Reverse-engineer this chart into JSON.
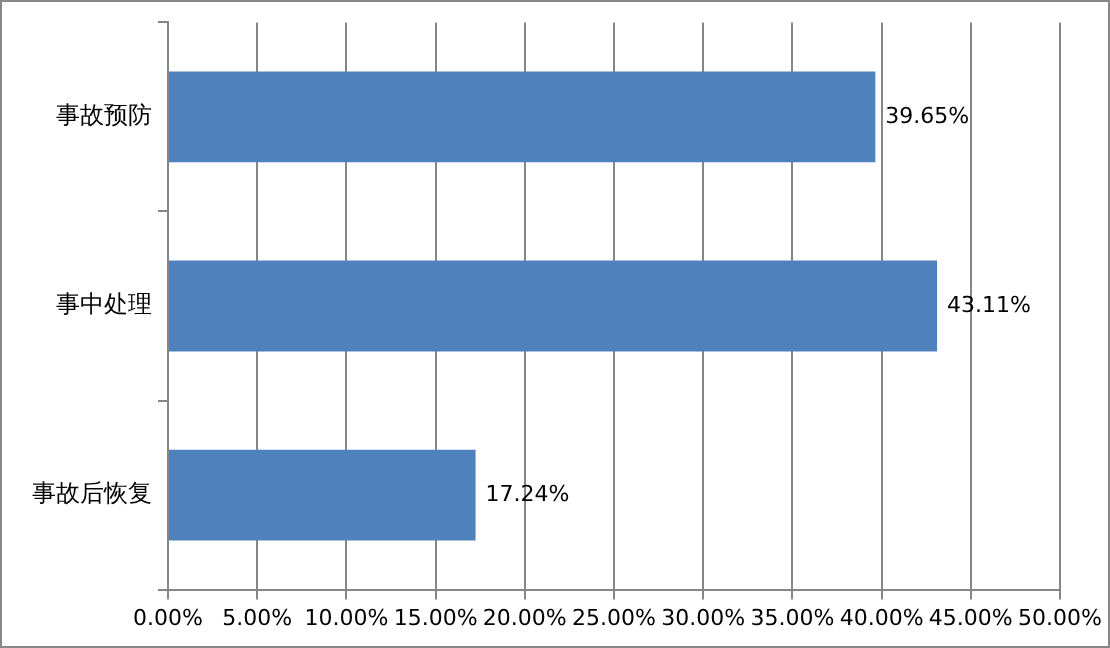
{
  "chart_data": {
    "type": "bar",
    "orientation": "horizontal",
    "categories": [
      "事故预防",
      "事中处理",
      "事故后恢复"
    ],
    "values": [
      39.65,
      43.11,
      17.24
    ],
    "color": "#4f81bd",
    "value_labels": [
      "39.65%",
      "43.11%",
      "17.24%"
    ],
    "xlim": [
      0,
      50
    ],
    "xticks": [
      {
        "value": 0,
        "label": "0.00%"
      },
      {
        "value": 5,
        "label": "5.00%"
      },
      {
        "value": 10,
        "label": "10.00%"
      },
      {
        "value": 15,
        "label": "15.00%"
      },
      {
        "value": 20,
        "label": "20.00%"
      },
      {
        "value": 25,
        "label": "25.00%"
      },
      {
        "value": 30,
        "label": "30.00%"
      },
      {
        "value": 35,
        "label": "35.00%"
      },
      {
        "value": 40,
        "label": "40.00%"
      },
      {
        "value": 45,
        "label": "45.00%"
      },
      {
        "value": 50,
        "label": "50.00%"
      }
    ],
    "grid": "x",
    "legend": false
  }
}
